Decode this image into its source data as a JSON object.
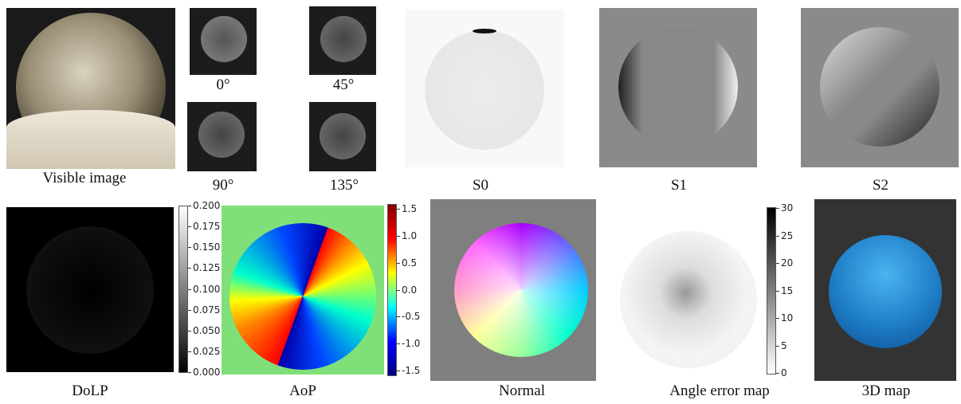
{
  "panels": {
    "visible": "Visible image",
    "p0": "0°",
    "p45": "45°",
    "p90": "90°",
    "p135": "135°",
    "s0": "S0",
    "s1": "S1",
    "s2": "S2",
    "dolp": "DoLP",
    "aop": "AoP",
    "normal": "Normal",
    "angle_error": "Angle error map",
    "map3d": "3D map"
  },
  "colorbars": {
    "dolp": {
      "ticks": [
        {
          "value": 0.2,
          "label": "0.200"
        },
        {
          "value": 0.175,
          "label": "0.175"
        },
        {
          "value": 0.15,
          "label": "0.150"
        },
        {
          "value": 0.125,
          "label": "0.125"
        },
        {
          "value": 0.1,
          "label": "0.100"
        },
        {
          "value": 0.075,
          "label": "0.075"
        },
        {
          "value": 0.05,
          "label": "0.050"
        },
        {
          "value": 0.025,
          "label": "0.025"
        },
        {
          "value": 0,
          "label": "0.000"
        }
      ]
    },
    "aop": {
      "ticks": [
        1.5,
        {
          "value": 1,
          "label": "1.0"
        },
        0.5,
        {
          "value": 0,
          "label": "0.0"
        },
        -0.5,
        {
          "value": -1,
          "label": "-1.0"
        },
        -1.5
      ]
    },
    "angle_error": {
      "ticks": [
        30,
        25,
        20,
        15,
        10,
        5,
        0
      ]
    }
  }
}
